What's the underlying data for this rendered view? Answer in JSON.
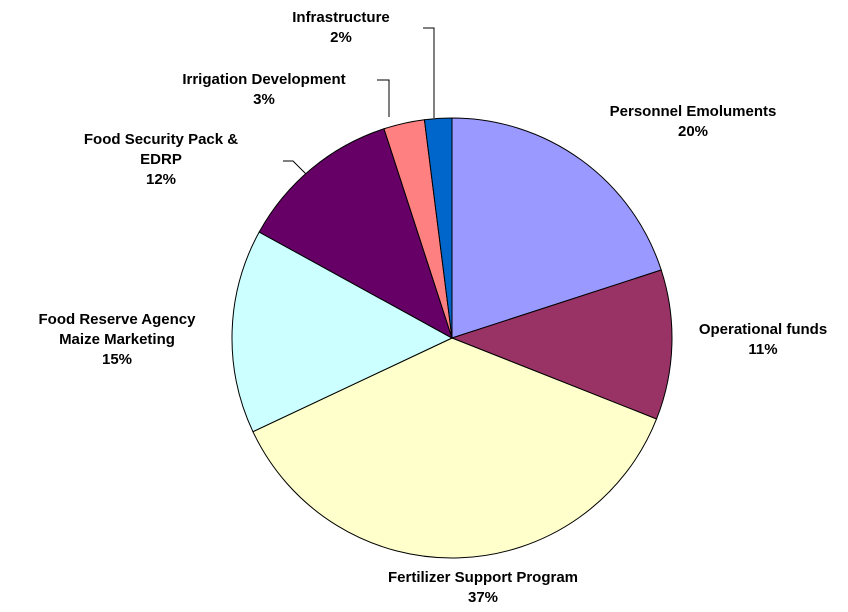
{
  "chart_data": {
    "type": "pie",
    "categories": [
      "Personnel Emoluments",
      "Operational funds",
      "Fertilizer Support Program",
      "Food Reserve Agency Maize Marketing",
      "Food Security Pack & EDRP",
      "Irrigation Development",
      "Infrastructure"
    ],
    "values": [
      20,
      11,
      37,
      15,
      12,
      3,
      2
    ],
    "value_labels": [
      "20%",
      "11%",
      "37%",
      "15%",
      "12%",
      "3%",
      "2%"
    ],
    "colors": [
      "#9999ff",
      "#993366",
      "#ffffcc",
      "#ccffff",
      "#660066",
      "#ff8080",
      "#0066cc"
    ]
  }
}
